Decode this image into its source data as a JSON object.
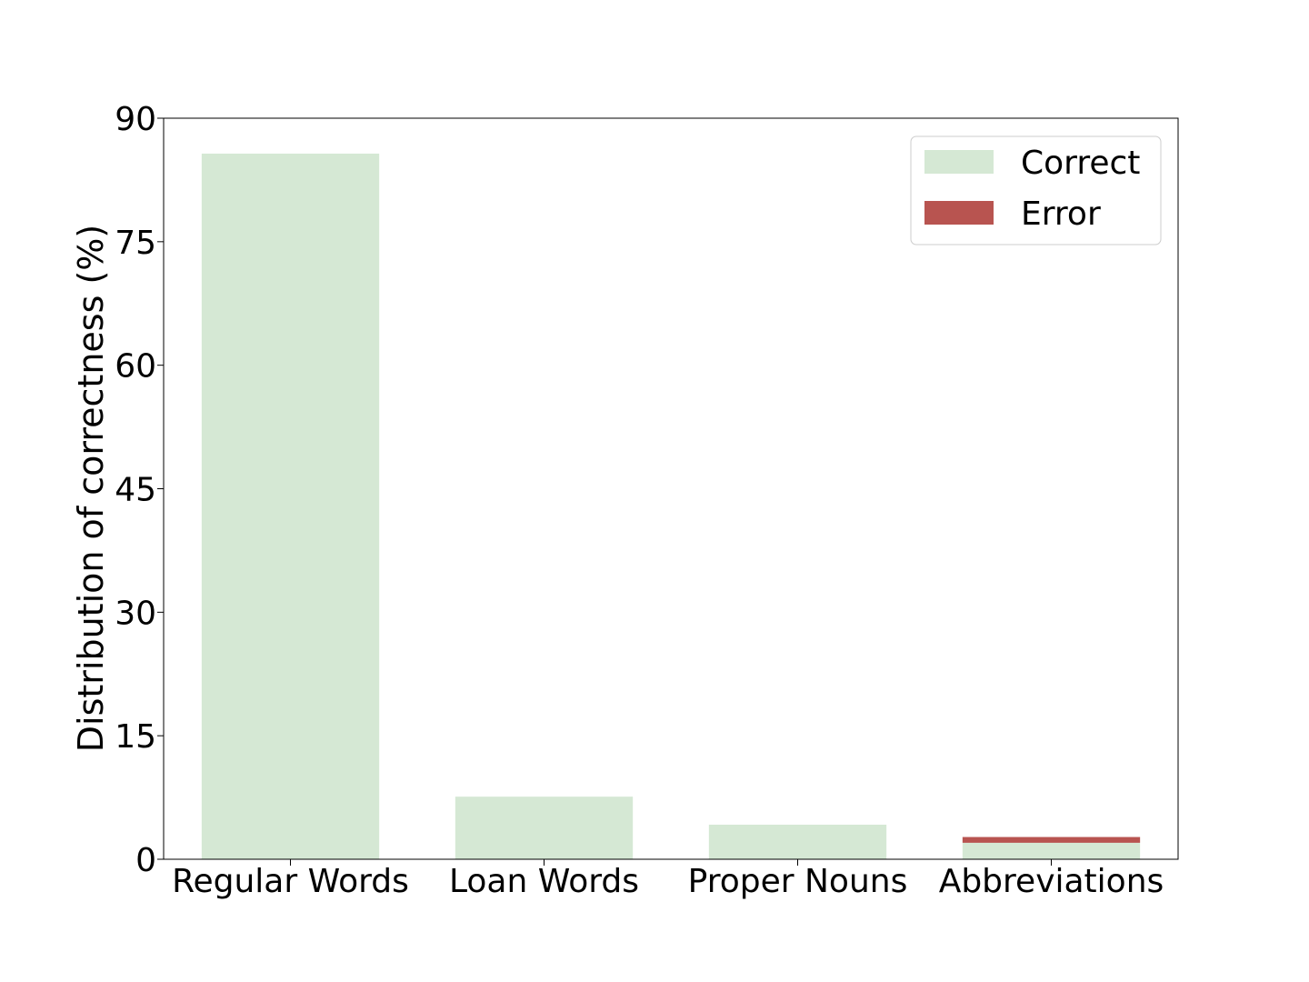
{
  "chart_data": {
    "type": "bar",
    "stacked": true,
    "categories": [
      "Regular Words",
      "Loan Words",
      "Proper Nouns",
      "Abbreviations"
    ],
    "series": [
      {
        "name": "Correct",
        "color": "#d5e8d4",
        "values": [
          85.7,
          7.6,
          4.2,
          2.0
        ]
      },
      {
        "name": "Error",
        "color": "#b85450",
        "values": [
          0.0,
          0.0,
          0.0,
          0.7
        ]
      }
    ],
    "ylabel": "Distribution of correctness (%)",
    "xlabel": "",
    "title": "",
    "ylim": [
      0,
      90
    ],
    "yticks": [
      0,
      15,
      30,
      45,
      60,
      75,
      90
    ],
    "grid": false,
    "legend_position": "top-right"
  }
}
